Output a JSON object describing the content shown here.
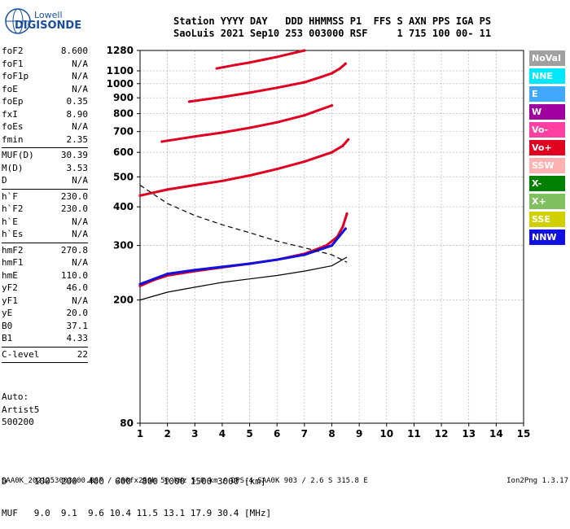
{
  "logo": {
    "line1": "Lowell",
    "line2": "DIGISONDE"
  },
  "header": {
    "line1": "Station YYYY DAY   DDD HHMMSS P1  FFS S AXN PPS IGA PS",
    "line2": "SaoLuis 2021 Sep10 253 003000 RSF     1 715 100 00- 11"
  },
  "params": [
    {
      "name": "foF2",
      "value": "8.600"
    },
    {
      "name": "foF1",
      "value": "N/A"
    },
    {
      "name": "foF1p",
      "value": "N/A"
    },
    {
      "name": "foE",
      "value": "N/A"
    },
    {
      "name": "foEp",
      "value": "0.35"
    },
    {
      "name": "fxI",
      "value": "8.90"
    },
    {
      "name": "foEs",
      "value": "N/A"
    },
    {
      "name": "fmin",
      "value": "2.35"
    },
    {
      "sep": true
    },
    {
      "name": "MUF(D)",
      "value": "30.39"
    },
    {
      "name": "M(D)",
      "value": "3.53"
    },
    {
      "name": "D",
      "value": "N/A"
    },
    {
      "sep": true
    },
    {
      "name": "h`F",
      "value": "230.0"
    },
    {
      "name": "h`F2",
      "value": "230.0"
    },
    {
      "name": "h`E",
      "value": "N/A"
    },
    {
      "name": "h`Es",
      "value": "N/A"
    },
    {
      "sep": true
    },
    {
      "name": "hmF2",
      "value": "270.8"
    },
    {
      "name": "hmF1",
      "value": "N/A"
    },
    {
      "name": "hmE",
      "value": "110.0"
    },
    {
      "name": "yF2",
      "value": "46.0"
    },
    {
      "name": "yF1",
      "value": "N/A"
    },
    {
      "name": "yE",
      "value": "20.0"
    },
    {
      "name": "B0",
      "value": "37.1"
    },
    {
      "name": "B1",
      "value": "4.33"
    },
    {
      "sep": true
    },
    {
      "name": "C-level",
      "value": "22"
    },
    {
      "sep": true
    }
  ],
  "auto": {
    "line1": "Auto:",
    "line2": "Artist5",
    "line3": "500200"
  },
  "muf_table": {
    "line1": "D     100  200  400  600  800 1000 1500 3000 [km]",
    "line2": "MUF   9.0  9.1  9.6 10.4 11.5 13.1 17.9 30.4 [MHz]"
  },
  "footer": {
    "left": "SAA0K_2021253003000.RSF / 280fx256h 50 kHz 5.0 km / DPS-4 SAA0K 903 / 2.6 S 315.8 E",
    "right": "Ion2Png 1.3.17"
  },
  "legend": [
    {
      "label": "NoVal",
      "color": "#a0a0a0"
    },
    {
      "label": "NNE",
      "color": "#00e8ff"
    },
    {
      "label": "E",
      "color": "#40a8ff"
    },
    {
      "label": "W",
      "color": "#a000a0"
    },
    {
      "label": "Vo-",
      "color": "#ff40a0"
    },
    {
      "label": "Vo+",
      "color": "#e00020"
    },
    {
      "label": "SSW",
      "color": "#ffb0b0"
    },
    {
      "label": "X-",
      "color": "#008000"
    },
    {
      "label": "X+",
      "color": "#80c060"
    },
    {
      "label": "SSE",
      "color": "#d0d000"
    },
    {
      "label": "NNW",
      "color": "#1010e0"
    }
  ],
  "chart_data": {
    "type": "scatter",
    "title": "",
    "xlabel": "",
    "ylabel": "",
    "xlim": [
      1,
      15
    ],
    "ylim": [
      80,
      1280
    ],
    "y_scale": "log",
    "grid": true,
    "x_ticks": [
      1,
      2,
      3,
      4,
      5,
      6,
      7,
      8,
      9,
      10,
      11,
      12,
      13,
      14,
      15
    ],
    "y_ticks": [
      80,
      200,
      300,
      400,
      500,
      600,
      700,
      800,
      900,
      1000,
      1100,
      1280
    ],
    "traces": [
      {
        "name": "",
        "color": "#e00020",
        "x": [
          1.0,
          1.5,
          2.0,
          3.0,
          4.0,
          5.0,
          6.0,
          7.0,
          7.8,
          8.2,
          8.4,
          8.55
        ],
        "y": [
          222,
          232,
          240,
          248,
          255,
          262,
          270,
          282,
          300,
          320,
          345,
          380
        ]
      },
      {
        "name": "",
        "color": "#1010e0",
        "x": [
          1.0,
          2.0,
          3.0,
          4.0,
          5.0,
          6.0,
          7.0,
          8.0,
          8.5
        ],
        "y": [
          225,
          243,
          250,
          256,
          262,
          270,
          280,
          300,
          340
        ]
      },
      {
        "name": "",
        "color": "#e00020",
        "x": [
          1.0,
          2.0,
          3.0,
          4.0,
          5.0,
          6.0,
          7.0,
          8.0,
          8.4,
          8.6
        ],
        "y": [
          435,
          455,
          470,
          485,
          505,
          530,
          560,
          600,
          630,
          660
        ]
      },
      {
        "name": "",
        "color": "#e00020",
        "x": [
          1.8,
          3.0,
          4.0,
          5.0,
          6.0,
          7.0,
          7.5,
          8.0
        ],
        "y": [
          650,
          675,
          695,
          720,
          750,
          790,
          820,
          850
        ]
      },
      {
        "name": "",
        "color": "#e00020",
        "x": [
          2.8,
          4.0,
          5.0,
          6.0,
          7.0,
          7.6,
          8.0,
          8.3,
          8.5
        ],
        "y": [
          875,
          905,
          935,
          970,
          1010,
          1050,
          1080,
          1120,
          1160
        ]
      },
      {
        "name": "",
        "color": "#e00020",
        "x": [
          3.8,
          4.5,
          5.0,
          5.5,
          6.0,
          6.5,
          7.0
        ],
        "y": [
          1120,
          1150,
          1170,
          1195,
          1220,
          1250,
          1280
        ]
      }
    ],
    "profile_curves": [
      {
        "name": "",
        "style": "dashed",
        "color": "#000000",
        "x": [
          1.0,
          2.0,
          3.0,
          4.0,
          5.0,
          6.0,
          7.0,
          8.0,
          8.55
        ],
        "y": [
          470,
          410,
          375,
          350,
          330,
          310,
          295,
          280,
          265
        ]
      },
      {
        "name": "",
        "style": "solid",
        "color": "#000000",
        "x": [
          1.0,
          2.0,
          3.0,
          4.0,
          5.0,
          6.0,
          7.0,
          8.0,
          8.55
        ],
        "y": [
          200,
          212,
          220,
          228,
          234,
          240,
          248,
          258,
          275
        ]
      }
    ]
  }
}
